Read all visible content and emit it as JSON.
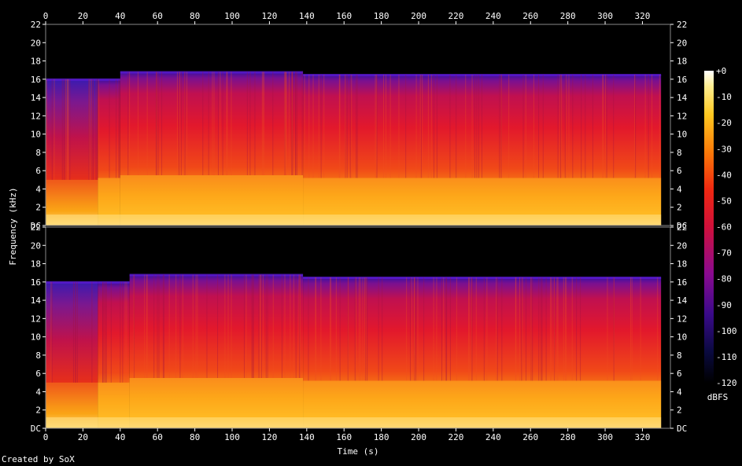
{
  "chart_data": {
    "type": "heatmap",
    "title": "",
    "xlabel": "Time (s)",
    "ylabel": "Frequency (kHz)",
    "x_range": [
      0,
      335
    ],
    "x_ticks": [
      0,
      20,
      40,
      60,
      80,
      100,
      120,
      140,
      160,
      180,
      200,
      220,
      240,
      260,
      280,
      300,
      320
    ],
    "y_range": [
      0,
      22
    ],
    "y_tick_labels": [
      "DC",
      "2",
      "4",
      "6",
      "8",
      "10",
      "12",
      "14",
      "16",
      "18",
      "20",
      "22"
    ],
    "colorbar": {
      "label": "dBFS",
      "range": [
        -120,
        0
      ],
      "ticks": [
        "+0",
        "-10",
        "-20",
        "-30",
        "-40",
        "-50",
        "-60",
        "-70",
        "-80",
        "-90",
        "-100",
        "-110",
        "-120"
      ]
    },
    "channels": [
      {
        "channel": 1,
        "segments": [
          {
            "t_start": 0,
            "t_end": 28,
            "cutoff_khz": 16.0,
            "bright_khz": 5.0
          },
          {
            "t_start": 28,
            "t_end": 40,
            "cutoff_khz": 16.0,
            "bright_khz": 5.2
          },
          {
            "t_start": 40,
            "t_end": 138,
            "cutoff_khz": 16.8,
            "bright_khz": 5.5
          },
          {
            "t_start": 138,
            "t_end": 330,
            "cutoff_khz": 16.5,
            "bright_khz": 5.2
          }
        ]
      },
      {
        "channel": 2,
        "segments": [
          {
            "t_start": 0,
            "t_end": 28,
            "cutoff_khz": 16.0,
            "bright_khz": 5.0
          },
          {
            "t_start": 28,
            "t_end": 45,
            "cutoff_khz": 16.0,
            "bright_khz": 5.0
          },
          {
            "t_start": 45,
            "t_end": 138,
            "cutoff_khz": 16.8,
            "bright_khz": 5.5
          },
          {
            "t_start": 138,
            "t_end": 330,
            "cutoff_khz": 16.5,
            "bright_khz": 5.2
          }
        ]
      }
    ]
  },
  "footer": {
    "credit": "Created by SoX"
  }
}
